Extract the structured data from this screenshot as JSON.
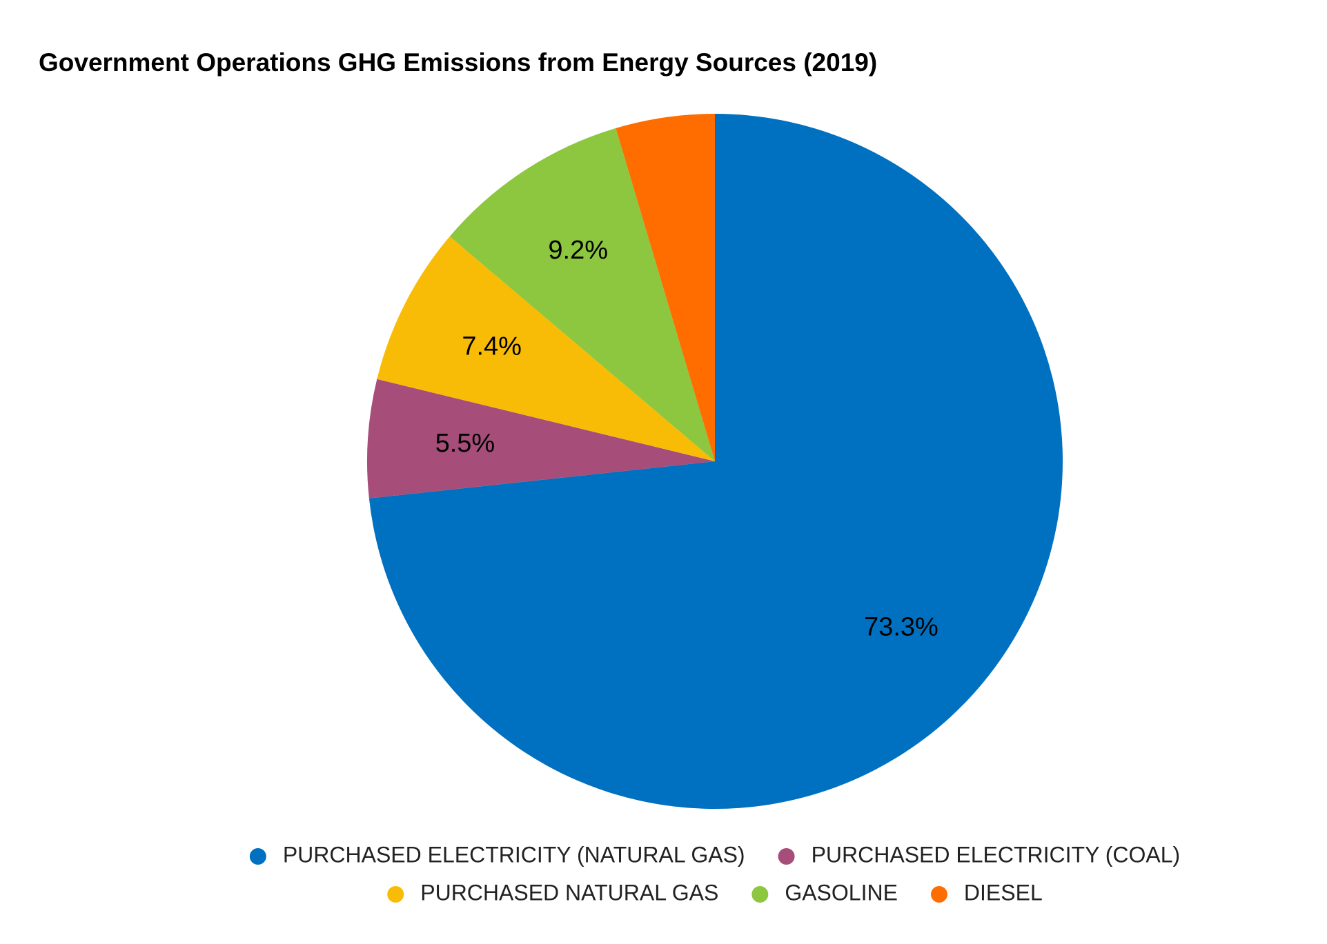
{
  "chart_data": {
    "type": "pie",
    "title": "Government Operations GHG Emissions from Energy Sources (2019)",
    "categories": [
      "PURCHASED ELECTRICITY (NATURAL GAS)",
      "PURCHASED ELECTRICITY (COAL)",
      "PURCHASED NATURAL GAS",
      "GASOLINE",
      "DIESEL"
    ],
    "values": [
      73.3,
      5.5,
      7.4,
      9.2,
      4.6
    ],
    "value_labels": [
      "73.3%",
      "5.5%",
      "7.4%",
      "9.2%",
      null
    ],
    "colors": [
      "#0070c0",
      "#a64d79",
      "#f9bc06",
      "#8dc63f",
      "#ff6d01"
    ],
    "legend": "bottom"
  }
}
